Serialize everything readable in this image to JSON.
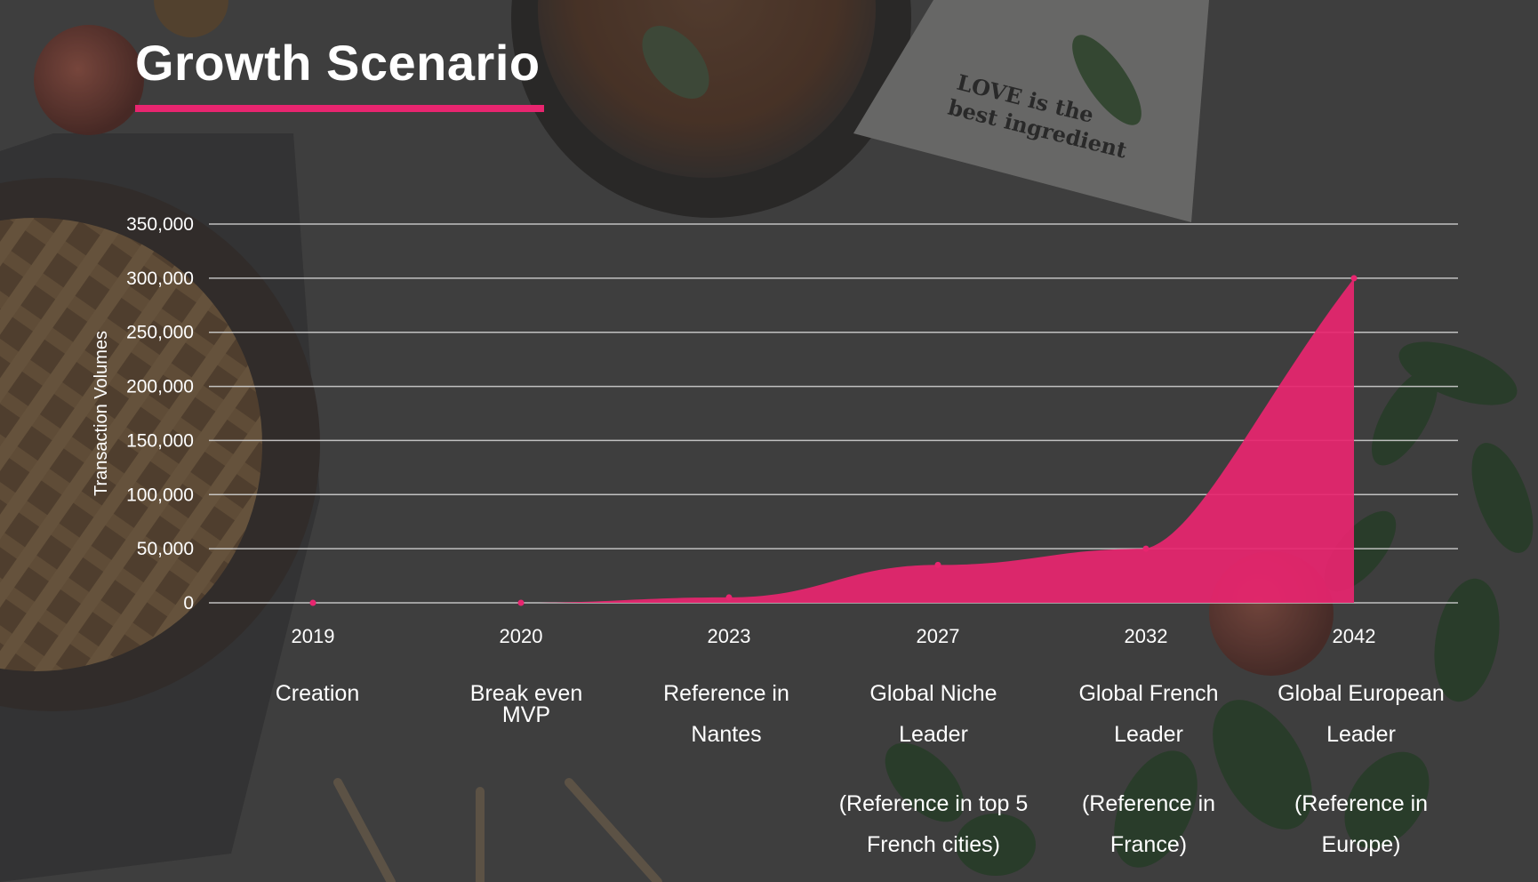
{
  "slide": {
    "title": "Growth Scenario",
    "accent_color": "#e8256f"
  },
  "napkin_text": [
    "LOVE is the",
    "best ingredient"
  ],
  "chart_data": {
    "type": "area",
    "title": "",
    "xlabel": "",
    "ylabel": "Transaction Volumes",
    "ylim": [
      0,
      350000
    ],
    "yticks": [
      0,
      50000,
      100000,
      150000,
      200000,
      250000,
      300000,
      350000
    ],
    "ytick_labels": [
      "0",
      "50,000",
      "100,000",
      "150,000",
      "200,000",
      "250,000",
      "300,000",
      "350,000"
    ],
    "categories": [
      "2019",
      "2020",
      "2023",
      "2027",
      "2032",
      "2042"
    ],
    "values": [
      0,
      0,
      5000,
      35000,
      50000,
      300000
    ],
    "grid": true,
    "legend": "none",
    "series_color": "#e8256f"
  },
  "milestones": [
    {
      "line1": "Creation",
      "line2": "",
      "extra": "",
      "extra2": ""
    },
    {
      "line1": "Break even",
      "line2": "",
      "extra": "MVP",
      "extra2": ""
    },
    {
      "line1": "Reference in",
      "line2": "Nantes",
      "extra": "",
      "extra2": ""
    },
    {
      "line1": "Global Niche",
      "line2": "Leader",
      "extra": "(Reference in top 5",
      "extra2": "French cities)"
    },
    {
      "line1": "Global French",
      "line2": "Leader",
      "extra": "(Reference in",
      "extra2": "France)"
    },
    {
      "line1": "Global European",
      "line2": "Leader",
      "extra": "(Reference in",
      "extra2": "Europe)"
    }
  ]
}
